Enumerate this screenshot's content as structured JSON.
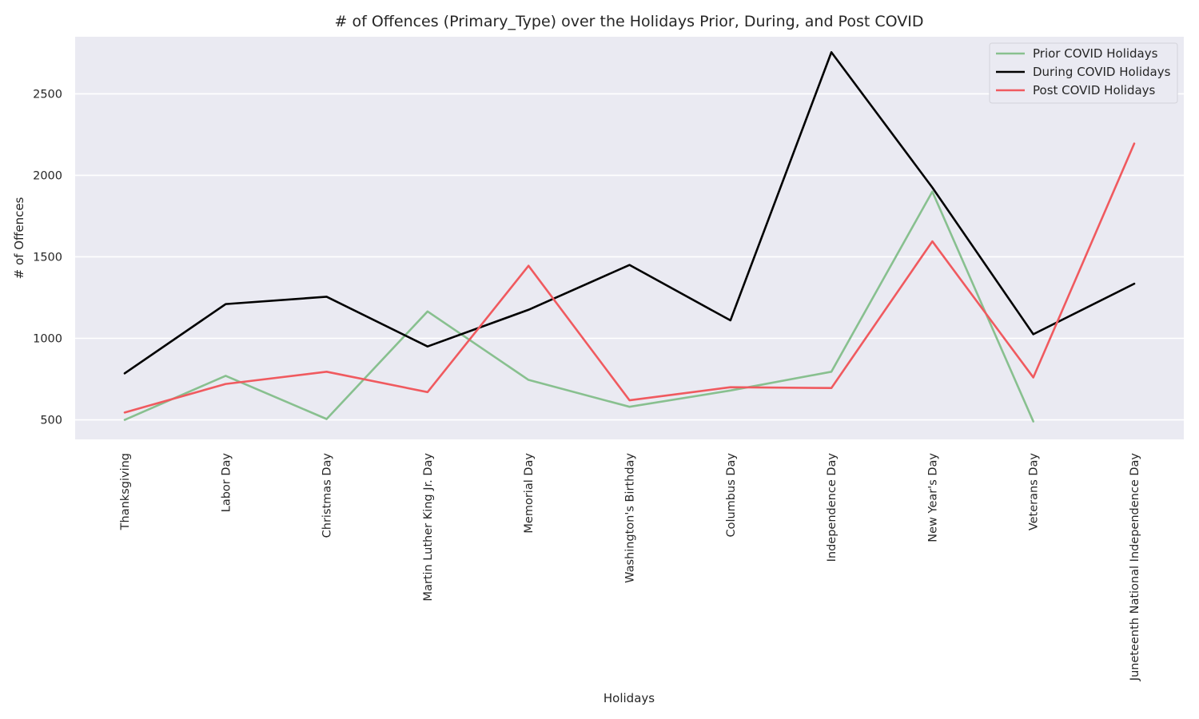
{
  "chart_data": {
    "type": "line",
    "title": "# of Offences (Primary_Type) over the Holidays Prior, During, and Post COVID",
    "xlabel": "Holidays",
    "ylabel": "# of Offences",
    "categories": [
      "Thanksgiving",
      "Labor Day",
      "Christmas Day",
      "Martin Luther King Jr. Day",
      "Memorial Day",
      "Washington's Birthday",
      "Columbus Day",
      "Independence Day",
      "New Year's Day",
      "Veterans Day",
      "Juneteenth National Independence Day"
    ],
    "yticks": [
      500,
      1000,
      1500,
      2000,
      2500
    ],
    "ylim": [
      380,
      2850
    ],
    "grid": true,
    "legend_position": "top-right",
    "series": [
      {
        "name": "Prior COVID Holidays",
        "color": "#88c08f",
        "values": [
          500,
          770,
          505,
          1165,
          745,
          580,
          680,
          795,
          1900,
          490,
          null
        ]
      },
      {
        "name": "During COVID Holidays",
        "color": "#000000",
        "values": [
          785,
          1210,
          1255,
          950,
          1175,
          1450,
          1110,
          2755,
          1925,
          1025,
          1335
        ]
      },
      {
        "name": "Post COVID Holidays",
        "color": "#f05a5f",
        "values": [
          545,
          720,
          795,
          670,
          1445,
          620,
          700,
          695,
          1595,
          760,
          2195
        ]
      }
    ]
  }
}
